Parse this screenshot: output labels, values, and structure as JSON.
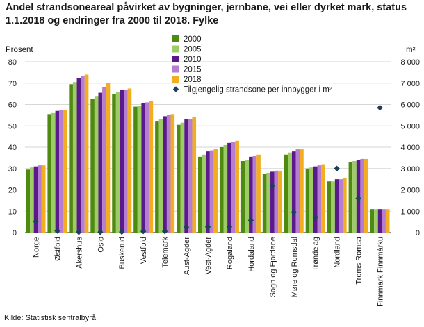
{
  "chart_data": {
    "type": "bar",
    "title": "Andel strandsoneareal påvirket av bygninger, jernbane, vei eller dyrket mark, status 1.1.2018 og endringer fra 2000 til 2018. Fylke",
    "ylabel": "Prosent",
    "y2label": "m²",
    "ylim": [
      0,
      80
    ],
    "y2lim": [
      0,
      8000
    ],
    "yticks": [
      "0",
      "10",
      "20",
      "30",
      "40",
      "50",
      "60",
      "70",
      "80"
    ],
    "y2ticks": [
      "0",
      "1 000",
      "2 000",
      "3 000",
      "4 000",
      "5 000",
      "6 000",
      "7 000",
      "8 000"
    ],
    "grid": true,
    "legend_position": "top-center",
    "categories": [
      "Norge",
      "Østfold",
      "Akershus",
      "Oslo",
      "Buskerud",
      "Vestfold",
      "Telemark",
      "Aust-Agder",
      "Vest-Agder",
      "Rogaland",
      "Hordaland",
      "Sogn og Fjordane",
      "Møre og Romsdal",
      "Trøndelag",
      "Nordland",
      "Troms Romsa",
      "Finnmark Finnmárku"
    ],
    "series": [
      {
        "name": "2000",
        "color": "#4f8a10",
        "values": [
          29.5,
          55.5,
          69.5,
          62.5,
          65.0,
          59.0,
          52.0,
          50.5,
          35.5,
          40.0,
          33.5,
          27.5,
          36.5,
          30.0,
          24.0,
          33.0,
          11.0
        ]
      },
      {
        "name": "2005",
        "color": "#9ccc65",
        "values": [
          30.5,
          56.0,
          70.5,
          64.0,
          66.0,
          59.5,
          53.0,
          51.5,
          36.5,
          41.0,
          34.0,
          28.0,
          37.5,
          30.5,
          24.0,
          33.5,
          11.0
        ]
      },
      {
        "name": "2010",
        "color": "#5b1a8c",
        "values": [
          31.0,
          57.0,
          72.5,
          65.5,
          67.0,
          60.5,
          54.5,
          53.0,
          38.0,
          42.0,
          35.5,
          28.5,
          38.0,
          31.0,
          25.0,
          34.0,
          11.0
        ]
      },
      {
        "name": "2015",
        "color": "#b57ed0",
        "values": [
          31.5,
          57.5,
          73.5,
          68.0,
          67.0,
          61.0,
          55.0,
          53.0,
          38.5,
          42.5,
          36.0,
          29.0,
          39.0,
          31.5,
          25.0,
          34.5,
          11.0
        ]
      },
      {
        "name": "2018",
        "color": "#f2ae20",
        "values": [
          31.5,
          57.5,
          74.0,
          70.0,
          67.5,
          61.5,
          55.5,
          54.0,
          39.0,
          43.0,
          36.5,
          29.0,
          39.0,
          32.0,
          25.5,
          34.5,
          11.0
        ]
      }
    ],
    "secondary_series": {
      "name": "Tilgjengelig strandsone per innbygger i m²",
      "type": "scatter",
      "marker": "diamond",
      "color": "#1f3d5c",
      "axis": "right",
      "values": [
        520,
        80,
        20,
        20,
        30,
        60,
        60,
        250,
        270,
        270,
        570,
        2200,
        950,
        720,
        3000,
        1600,
        5850
      ]
    }
  },
  "source": "Kilde: Statistisk sentralbyrå."
}
